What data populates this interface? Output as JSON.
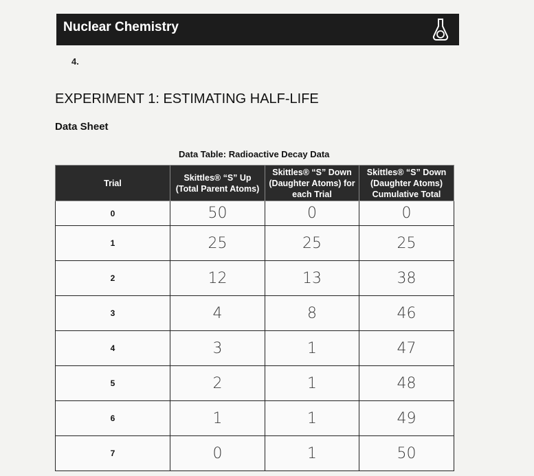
{
  "header": {
    "title": "Nuclear Chemistry"
  },
  "question_number": "4.",
  "experiment_title": "EXPERIMENT 1: ESTIMATING HALF-LIFE",
  "section_title": "Data Sheet",
  "table": {
    "caption": "Data Table: Radioactive Decay Data",
    "columns": [
      "Trial",
      "Skittles® “S” Up (Total Parent Atoms)",
      "Skittles® “S” Down (Daughter Atoms) for each Trial",
      "Skittles® “S” Down (Daughter Atoms) Cumulative Total"
    ],
    "rows": [
      [
        "0",
        "50",
        "0",
        "0"
      ],
      [
        "1",
        "25",
        "25",
        "25"
      ],
      [
        "2",
        "12",
        "13",
        "38"
      ],
      [
        "3",
        "4",
        "8",
        "46"
      ],
      [
        "4",
        "3",
        "1",
        "47"
      ],
      [
        "5",
        "2",
        "1",
        "48"
      ],
      [
        "6",
        "1",
        "1",
        "49"
      ],
      [
        "7",
        "0",
        "1",
        "50"
      ]
    ]
  }
}
